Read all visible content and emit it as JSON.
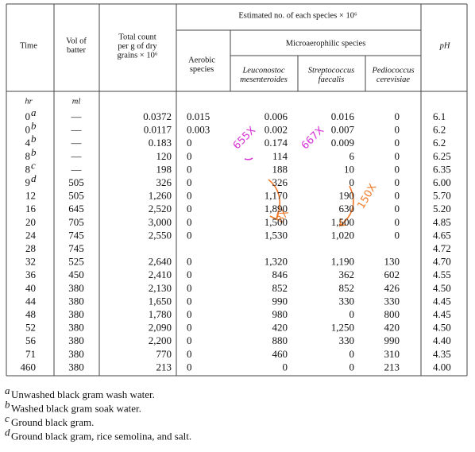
{
  "header": {
    "time": "Time",
    "vol": [
      "Vol of",
      "batter"
    ],
    "total": [
      "Total count",
      "per g of dry",
      "grains × 10⁶"
    ],
    "estimated": "Estimated no. of each species × 10⁶",
    "aerobic": [
      "Aerobic",
      "species"
    ],
    "micro": "Microaerophilic species",
    "leuco": [
      "Leuconostoc",
      "mesenteroides"
    ],
    "strep": [
      "Streptococcus",
      "faecalis"
    ],
    "pedio": [
      "Pediococcus",
      "cerevisiae"
    ],
    "ph": "pH"
  },
  "units": {
    "time": "hr",
    "vol": "ml"
  },
  "table": {
    "rows": [
      {
        "time": "0",
        "note": "a",
        "cells": [
          "—",
          "0.0372",
          "0.015",
          "0.006",
          "0.016",
          "0",
          "6.1"
        ]
      },
      {
        "time": "0",
        "note": "b",
        "cells": [
          "—",
          "0.0117",
          "0.003",
          "0.002",
          "0.007",
          "0",
          "6.2"
        ]
      },
      {
        "time": "4",
        "note": "b",
        "cells": [
          "—",
          "0.183",
          "0",
          "0.174",
          "0.009",
          "0",
          "6.2"
        ]
      },
      {
        "time": "8",
        "note": "b",
        "cells": [
          "—",
          "120",
          "0",
          "114",
          "6",
          "0",
          "6.25"
        ]
      },
      {
        "time": "8",
        "note": "c",
        "cells": [
          "—",
          "198",
          "0",
          "188",
          "10",
          "0",
          "6.35"
        ]
      },
      {
        "time": "9",
        "note": "d",
        "cells": [
          "505",
          "326",
          "0",
          "326",
          "0",
          "0",
          "6.00"
        ]
      },
      {
        "time": "12",
        "cells": [
          "505",
          "1,260",
          "0",
          "1,170",
          "190",
          "0",
          "5.70"
        ]
      },
      {
        "time": "16",
        "cells": [
          "645",
          "2,520",
          "0",
          "1,890",
          "630",
          "0",
          "5.20"
        ]
      },
      {
        "time": "20",
        "cells": [
          "705",
          "3,000",
          "0",
          "1,500",
          "1,500",
          "0",
          "4.85"
        ]
      },
      {
        "time": "24",
        "cells": [
          "745",
          "2,550",
          "0",
          "1,530",
          "1,020",
          "0",
          "4.65"
        ]
      },
      {
        "time": "28",
        "cells": [
          "745",
          null,
          null,
          null,
          null,
          null,
          "4.72"
        ]
      },
      {
        "time": "32",
        "cells": [
          "525",
          "2,640",
          "0",
          "1,320",
          "1,190",
          "130",
          "4.70"
        ]
      },
      {
        "time": "36",
        "cells": [
          "450",
          "2,410",
          "0",
          "846",
          "362",
          "602",
          "4.55"
        ]
      },
      {
        "time": "40",
        "cells": [
          "380",
          "2,130",
          "0",
          "852",
          "852",
          "426",
          "4.50"
        ]
      },
      {
        "time": "44",
        "cells": [
          "380",
          "1,650",
          "0",
          "990",
          "330",
          "330",
          "4.45"
        ]
      },
      {
        "time": "48",
        "cells": [
          "380",
          "1,780",
          "0",
          "980",
          "0",
          "800",
          "4.45"
        ]
      },
      {
        "time": "52",
        "cells": [
          "380",
          "2,090",
          "0",
          "420",
          "1,250",
          "420",
          "4.50"
        ]
      },
      {
        "time": "56",
        "cells": [
          "380",
          "2,200",
          "0",
          "880",
          "330",
          "990",
          "4.40"
        ]
      },
      {
        "time": "71",
        "cells": [
          "380",
          "770",
          "0",
          "460",
          "0",
          "310",
          "4.35"
        ]
      },
      {
        "time": "460",
        "cells": [
          "380",
          "213",
          "0",
          "0",
          "0",
          "213",
          "4.00"
        ]
      }
    ]
  },
  "footnotes": [
    {
      "mark": "a",
      "text": "Unwashed black gram wash water."
    },
    {
      "mark": "b",
      "text": "Washed black gram soak water."
    },
    {
      "mark": "c",
      "text": "Ground black gram."
    },
    {
      "mark": "d",
      "text": "Ground black gram, rice semolina, and salt."
    }
  ],
  "annotations": {
    "a1": "655X",
    "a2": "667X",
    "a3": "8X",
    "a4": "150X"
  }
}
